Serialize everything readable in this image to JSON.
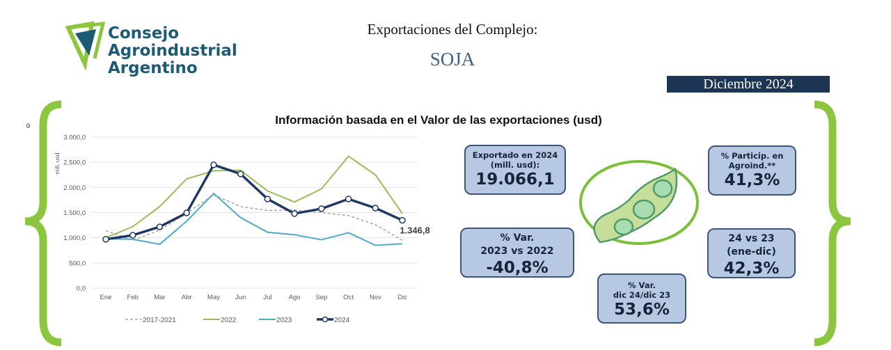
{
  "logo": {
    "lines": [
      "Consejo",
      "Agroindustrial",
      "Argentino"
    ]
  },
  "header": {
    "title": "Exportaciones del Complejo:",
    "subtitle": "SOJA",
    "period": "Diciembre 2024"
  },
  "side_label": "0",
  "kpis": {
    "exported": {
      "label1": "Exportado en 2024",
      "label2": "(mill. usd):",
      "value": "19.066,1"
    },
    "share": {
      "label1": "% Particip. en",
      "label2": "Agroind.**",
      "value": "41,3%"
    },
    "var_year": {
      "label1": "% Var.",
      "label2": "2023 vs 2022",
      "value": "-40,8%"
    },
    "ytd": {
      "label1": "24 vs 23",
      "label2": "(ene-dic)",
      "value": "42,3%"
    },
    "var_month": {
      "label1": "% Var.",
      "label2": "dic 24/dic 23",
      "value": "53,6%"
    }
  },
  "colors": {
    "s2017": "#a6a6a6",
    "s2022": "#9bbb59",
    "s2023": "#4bacc6",
    "s2024": "#1f3864",
    "bracket": "#8cc63f"
  },
  "chart_data": {
    "type": "line",
    "title": "Información basada en el Valor de las exportaciones (usd)",
    "ylabel": "mill. usd",
    "xlabel": "",
    "ylim": [
      0,
      3000
    ],
    "yticks": [
      "0,0",
      "500,0",
      "1.000,0",
      "1.500,0",
      "2.000,0",
      "2.500,0",
      "3.000,0"
    ],
    "categories": [
      "Ene",
      "Feb",
      "Mar",
      "Abr",
      "May",
      "Jun",
      "Jul",
      "Ago",
      "Sep",
      "Oct",
      "Nov",
      "Dic"
    ],
    "series": [
      {
        "name": "2017-2021",
        "values": [
          1140,
          950,
          1150,
          1490,
          1850,
          1620,
          1540,
          1550,
          1500,
          1440,
          1260,
          950
        ]
      },
      {
        "name": "2022",
        "values": [
          1000,
          1220,
          1620,
          2170,
          2330,
          2340,
          1930,
          1710,
          1970,
          2620,
          2250,
          1480
        ]
      },
      {
        "name": "2023",
        "values": [
          980,
          970,
          870,
          1330,
          1880,
          1400,
          1110,
          1060,
          960,
          1100,
          850,
          880
        ]
      },
      {
        "name": "2024",
        "values": [
          970,
          1050,
          1217,
          1494,
          2448,
          2268,
          1770,
          1480,
          1577,
          1770,
          1590,
          1346.8
        ]
      }
    ],
    "annotation": "1.346,8",
    "grid": true,
    "legend": "bottom"
  }
}
